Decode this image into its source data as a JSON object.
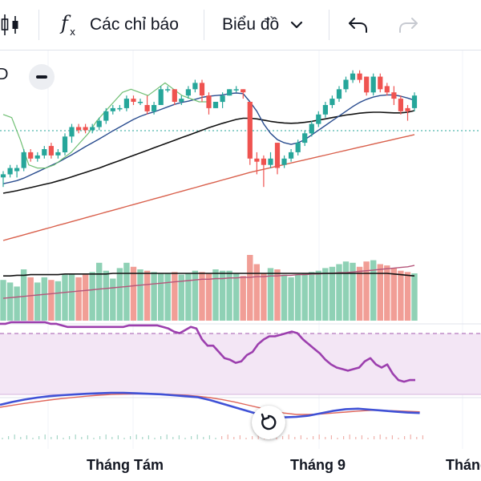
{
  "toolbar": {
    "indicators_label": "Các chỉ báo",
    "chart_type_label": "Biểu đồ"
  },
  "legend": {
    "fragment": "D"
  },
  "time_axis": {
    "labels": [
      "Tháng Tám",
      "Tháng 9",
      "Tháng"
    ]
  },
  "colors": {
    "up": "#26a69a",
    "down": "#ef5350",
    "up_volume": "#8fd1b5",
    "down_volume": "#f19e96",
    "ma_blue": "#2a4d8f",
    "ma_black": "#111111",
    "ma_red": "#d9604c",
    "ma_green": "#6fbf73",
    "rsi_line": "#9c3fae",
    "rsi_band": "#f3e6f5",
    "macd_line": "#3f51d6",
    "signal_line": "#e0665a"
  },
  "icons": [
    "candles-icon",
    "function-icon",
    "chevron-down-icon",
    "undo-icon",
    "redo-icon",
    "minus-icon",
    "refresh-icon"
  ],
  "chart_data": {
    "type": "candlestick",
    "price": {
      "candles": [
        {
          "o": 24.2,
          "h": 24.4,
          "l": 23.9,
          "c": 24.3
        },
        {
          "o": 24.3,
          "h": 24.6,
          "l": 24.2,
          "c": 24.5
        },
        {
          "o": 24.4,
          "h": 24.6,
          "l": 24.2,
          "c": 24.5
        },
        {
          "o": 24.5,
          "h": 25.1,
          "l": 24.4,
          "c": 25.0
        },
        {
          "o": 25.0,
          "h": 25.1,
          "l": 24.7,
          "c": 24.8
        },
        {
          "o": 24.8,
          "h": 25.0,
          "l": 24.7,
          "c": 24.9
        },
        {
          "o": 24.9,
          "h": 25.2,
          "l": 24.8,
          "c": 25.1
        },
        {
          "o": 25.2,
          "h": 25.3,
          "l": 24.8,
          "c": 24.9
        },
        {
          "o": 24.9,
          "h": 25.1,
          "l": 24.8,
          "c": 25.0
        },
        {
          "o": 25.0,
          "h": 25.6,
          "l": 24.9,
          "c": 25.5
        },
        {
          "o": 25.5,
          "h": 25.9,
          "l": 25.3,
          "c": 25.8
        },
        {
          "o": 25.8,
          "h": 25.9,
          "l": 25.6,
          "c": 25.7
        },
        {
          "o": 25.8,
          "h": 25.9,
          "l": 25.6,
          "c": 25.7
        },
        {
          "o": 25.7,
          "h": 25.9,
          "l": 25.6,
          "c": 25.8
        },
        {
          "o": 25.8,
          "h": 26.1,
          "l": 25.7,
          "c": 26.0
        },
        {
          "o": 26.0,
          "h": 26.4,
          "l": 25.9,
          "c": 26.3
        },
        {
          "o": 26.3,
          "h": 26.5,
          "l": 26.2,
          "c": 26.4
        },
        {
          "o": 26.4,
          "h": 26.5,
          "l": 26.3,
          "c": 26.4
        },
        {
          "o": 26.4,
          "h": 26.8,
          "l": 26.3,
          "c": 26.7
        },
        {
          "o": 26.7,
          "h": 26.8,
          "l": 26.5,
          "c": 26.6
        },
        {
          "o": 26.6,
          "h": 26.7,
          "l": 26.5,
          "c": 26.6
        },
        {
          "o": 26.5,
          "h": 26.8,
          "l": 26.2,
          "c": 26.3
        },
        {
          "o": 26.3,
          "h": 26.6,
          "l": 26.2,
          "c": 26.5
        },
        {
          "o": 26.5,
          "h": 27.1,
          "l": 26.5,
          "c": 27.0
        },
        {
          "o": 27.0,
          "h": 27.1,
          "l": 26.9,
          "c": 27.0
        },
        {
          "o": 27.0,
          "h": 27.0,
          "l": 26.5,
          "c": 26.6
        },
        {
          "o": 26.6,
          "h": 26.8,
          "l": 26.5,
          "c": 26.7
        },
        {
          "o": 26.8,
          "h": 27.1,
          "l": 26.7,
          "c": 27.0
        },
        {
          "o": 27.0,
          "h": 27.3,
          "l": 26.9,
          "c": 27.2
        },
        {
          "o": 27.2,
          "h": 27.3,
          "l": 26.6,
          "c": 26.8
        },
        {
          "o": 26.8,
          "h": 26.9,
          "l": 26.2,
          "c": 26.4
        },
        {
          "o": 26.4,
          "h": 26.6,
          "l": 26.4,
          "c": 26.6
        },
        {
          "o": 26.6,
          "h": 26.9,
          "l": 26.4,
          "c": 26.8
        },
        {
          "o": 26.8,
          "h": 27.0,
          "l": 26.8,
          "c": 27.0
        },
        {
          "o": 27.0,
          "h": 27.1,
          "l": 26.9,
          "c": 27.0
        },
        {
          "o": 27.0,
          "h": 27.0,
          "l": 26.7,
          "c": 26.9
        },
        {
          "o": 26.6,
          "h": 26.6,
          "l": 24.6,
          "c": 24.8
        },
        {
          "o": 24.8,
          "h": 25.0,
          "l": 24.3,
          "c": 24.7
        },
        {
          "o": 24.8,
          "h": 24.9,
          "l": 23.9,
          "c": 24.6
        },
        {
          "o": 24.6,
          "h": 25.0,
          "l": 24.5,
          "c": 24.8
        },
        {
          "o": 25.3,
          "h": 25.3,
          "l": 24.3,
          "c": 24.5
        },
        {
          "o": 24.6,
          "h": 24.9,
          "l": 24.5,
          "c": 24.8
        },
        {
          "o": 24.8,
          "h": 25.1,
          "l": 24.7,
          "c": 25.0
        },
        {
          "o": 25.0,
          "h": 25.4,
          "l": 24.9,
          "c": 25.3
        },
        {
          "o": 25.3,
          "h": 25.7,
          "l": 25.2,
          "c": 25.6
        },
        {
          "o": 25.6,
          "h": 26.0,
          "l": 25.5,
          "c": 25.9
        },
        {
          "o": 25.9,
          "h": 26.3,
          "l": 25.8,
          "c": 26.2
        },
        {
          "o": 26.2,
          "h": 26.6,
          "l": 26.1,
          "c": 26.5
        },
        {
          "o": 26.5,
          "h": 26.8,
          "l": 26.4,
          "c": 26.7
        },
        {
          "o": 26.7,
          "h": 27.1,
          "l": 26.6,
          "c": 27.0
        },
        {
          "o": 27.0,
          "h": 27.4,
          "l": 26.9,
          "c": 27.3
        },
        {
          "o": 27.3,
          "h": 27.6,
          "l": 27.2,
          "c": 27.5
        },
        {
          "o": 27.5,
          "h": 27.6,
          "l": 27.2,
          "c": 27.3
        },
        {
          "o": 27.4,
          "h": 27.4,
          "l": 26.8,
          "c": 26.9
        },
        {
          "o": 26.9,
          "h": 27.5,
          "l": 26.8,
          "c": 27.4
        },
        {
          "o": 27.4,
          "h": 27.5,
          "l": 26.9,
          "c": 27.0
        },
        {
          "o": 27.1,
          "h": 27.2,
          "l": 26.8,
          "c": 26.9
        },
        {
          "o": 26.9,
          "h": 27.1,
          "l": 26.5,
          "c": 26.7
        },
        {
          "o": 26.7,
          "h": 26.8,
          "l": 26.2,
          "c": 26.3
        },
        {
          "o": 26.4,
          "h": 26.5,
          "l": 26.0,
          "c": 26.3
        },
        {
          "o": 26.4,
          "h": 26.9,
          "l": 26.3,
          "c": 26.8
        }
      ],
      "ma_blue": [
        24.0,
        24.05,
        24.1,
        24.18,
        24.28,
        24.38,
        24.48,
        24.58,
        24.68,
        24.8,
        24.92,
        25.05,
        25.18,
        25.3,
        25.42,
        25.55,
        25.68,
        25.8,
        25.92,
        26.04,
        26.14,
        26.22,
        26.28,
        26.36,
        26.44,
        26.52,
        26.58,
        26.62,
        26.68,
        26.74,
        26.78,
        26.8,
        26.82,
        26.86,
        26.88,
        26.86,
        26.6,
        26.3,
        25.9,
        25.6,
        25.4,
        25.3,
        25.25,
        25.3,
        25.4,
        25.55,
        25.7,
        25.85,
        26.0,
        26.15,
        26.3,
        26.45,
        26.58,
        26.68,
        26.75,
        26.8,
        26.82,
        26.82,
        26.78,
        26.72,
        26.65
      ],
      "ma_black": [
        23.7,
        23.74,
        23.78,
        23.83,
        23.88,
        23.93,
        23.98,
        24.03,
        24.09,
        24.15,
        24.22,
        24.29,
        24.36,
        24.43,
        24.5,
        24.58,
        24.66,
        24.74,
        24.82,
        24.9,
        24.98,
        25.06,
        25.14,
        25.22,
        25.3,
        25.38,
        25.46,
        25.54,
        25.62,
        25.7,
        25.78,
        25.85,
        25.92,
        25.98,
        26.04,
        26.08,
        26.08,
        26.06,
        26.02,
        25.98,
        25.95,
        25.93,
        25.92,
        25.93,
        25.95,
        25.98,
        26.02,
        26.06,
        26.1,
        26.14,
        26.18,
        26.21,
        26.24,
        26.26,
        26.27,
        26.27,
        26.26,
        26.25,
        26.25,
        26.27,
        26.32
      ],
      "ma_red": [
        22.2,
        22.26,
        22.32,
        22.38,
        22.44,
        22.5,
        22.56,
        22.62,
        22.68,
        22.74,
        22.8,
        22.86,
        22.92,
        22.98,
        23.04,
        23.1,
        23.16,
        23.22,
        23.28,
        23.34,
        23.4,
        23.46,
        23.52,
        23.58,
        23.64,
        23.7,
        23.76,
        23.82,
        23.88,
        23.94,
        24.0,
        24.06,
        24.12,
        24.18,
        24.24,
        24.3,
        24.36,
        24.41,
        24.46,
        24.51,
        24.56,
        24.61,
        24.66,
        24.71,
        24.76,
        24.81,
        24.86,
        24.91,
        24.96,
        25.01,
        25.06,
        25.11,
        25.16,
        25.21,
        25.26,
        25.31,
        25.36,
        25.41,
        25.46,
        25.51,
        25.56
      ],
      "ma_green": [
        26.2,
        26.1,
        25.4,
        24.6,
        24.5,
        24.5,
        24.6,
        24.8,
        25.0,
        25.3,
        25.6,
        26.0,
        26.3,
        26.6,
        26.9,
        27.0,
        26.9,
        26.8,
        27.0,
        27.2,
        27.0,
        26.8,
        26.7,
        26.6,
        26.6
      ]
    },
    "volume": {
      "values": [
        62,
        58,
        52,
        78,
        66,
        58,
        66,
        62,
        60,
        70,
        72,
        66,
        70,
        74,
        88,
        76,
        64,
        80,
        88,
        82,
        78,
        76,
        74,
        72,
        72,
        74,
        70,
        72,
        76,
        74,
        72,
        78,
        76,
        76,
        72,
        68,
        100,
        86,
        72,
        80,
        78,
        70,
        66,
        70,
        72,
        74,
        76,
        80,
        82,
        86,
        90,
        88,
        82,
        90,
        92,
        86,
        84,
        80,
        76,
        74,
        72
      ],
      "ma_black": [
        68,
        68,
        69,
        69,
        70,
        70,
        70,
        70,
        70,
        71,
        71,
        71,
        71,
        71,
        71,
        71,
        72,
        72,
        72,
        72,
        72,
        72,
        72,
        72,
        72,
        72,
        72,
        72,
        72,
        72,
        72,
        72,
        72,
        72,
        72,
        72,
        72,
        72,
        72,
        72,
        72,
        72,
        72,
        72,
        72,
        72,
        72,
        72,
        72,
        72,
        72,
        72,
        72,
        72,
        72,
        72,
        72,
        71,
        70,
        69,
        68
      ],
      "ma_red": [
        34,
        35,
        36,
        37,
        38,
        39,
        40,
        41,
        42,
        43,
        44,
        45,
        46,
        47,
        48,
        49,
        50,
        51,
        52,
        53,
        54,
        55,
        56,
        57,
        58,
        59,
        60,
        61,
        62,
        63,
        63,
        64,
        64,
        65,
        65,
        66,
        66,
        67,
        67,
        68,
        68,
        69,
        69,
        70,
        70,
        71,
        71,
        72,
        72,
        73,
        73,
        74,
        75,
        76,
        77,
        78,
        79,
        80,
        81,
        82,
        84
      ]
    },
    "rsi": {
      "values": [
        98,
        98,
        99,
        99,
        99,
        99,
        99,
        99,
        99,
        98,
        98,
        97,
        96,
        96,
        96,
        96,
        96,
        96,
        96,
        96,
        96,
        96,
        96,
        97,
        97,
        97,
        97,
        97,
        97,
        96,
        95,
        93,
        92,
        94,
        96,
        95,
        88,
        84,
        84,
        80,
        76,
        75,
        73,
        74,
        78,
        80,
        85,
        88,
        90,
        90,
        91,
        92,
        93,
        92,
        88,
        85,
        82,
        79,
        75,
        72,
        70,
        69,
        68,
        69,
        70,
        74,
        76,
        72,
        70,
        72,
        66,
        62,
        61,
        62,
        62
      ]
    },
    "macd": {
      "macd_line": [
        0.5,
        0.62,
        0.72,
        0.8,
        0.86,
        0.9,
        0.93,
        0.96,
        0.98,
        1.0,
        1.0,
        0.98,
        0.96,
        0.94,
        0.9,
        0.86,
        0.82,
        0.7,
        0.55,
        0.4,
        0.25,
        0.1,
        0.02,
        -0.02,
        0.0,
        0.05,
        0.15,
        0.25,
        0.32,
        0.34,
        0.3,
        0.26,
        0.22,
        0.18,
        0.16
      ],
      "signal_line": [
        0.4,
        0.48,
        0.56,
        0.63,
        0.7,
        0.76,
        0.81,
        0.86,
        0.9,
        0.93,
        0.95,
        0.96,
        0.96,
        0.95,
        0.93,
        0.9,
        0.86,
        0.8,
        0.72,
        0.62,
        0.5,
        0.38,
        0.26,
        0.16,
        0.1,
        0.1,
        0.12,
        0.16,
        0.2,
        0.24,
        0.27,
        0.27,
        0.25,
        0.23,
        0.21
      ]
    }
  }
}
